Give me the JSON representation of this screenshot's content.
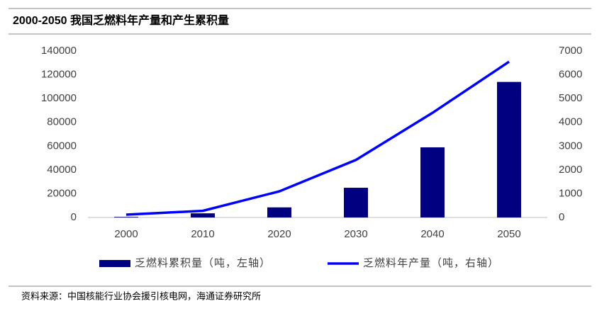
{
  "chart_data": {
    "type": "combo",
    "title": "2000-2050 我国乏燃料年产量和产生累积量",
    "categories": [
      "2000",
      "2010",
      "2020",
      "2030",
      "2040",
      "2050"
    ],
    "series": [
      {
        "name": "乏燃料累积量（吨，左轴）",
        "type": "bar",
        "color": "#000080",
        "values": [
          500,
          3500,
          8500,
          25000,
          59000,
          114000
        ]
      },
      {
        "name": "乏燃料年产量（吨，右轴）",
        "type": "line",
        "color": "#0000ff",
        "axis": "y2",
        "values": [
          120,
          280,
          1100,
          2420,
          4400,
          6550
        ]
      }
    ],
    "ylim": [
      0,
      140000
    ],
    "yticks": [
      0,
      20000,
      40000,
      60000,
      80000,
      100000,
      120000,
      140000
    ],
    "y2lim": [
      0,
      7000
    ],
    "y2ticks": [
      0,
      1000,
      2000,
      3000,
      4000,
      5000,
      6000,
      7000
    ],
    "grid": false,
    "legend": "bottom",
    "source": "资料来源：中国核能行业协会援引核电网，海通证券研究所"
  }
}
